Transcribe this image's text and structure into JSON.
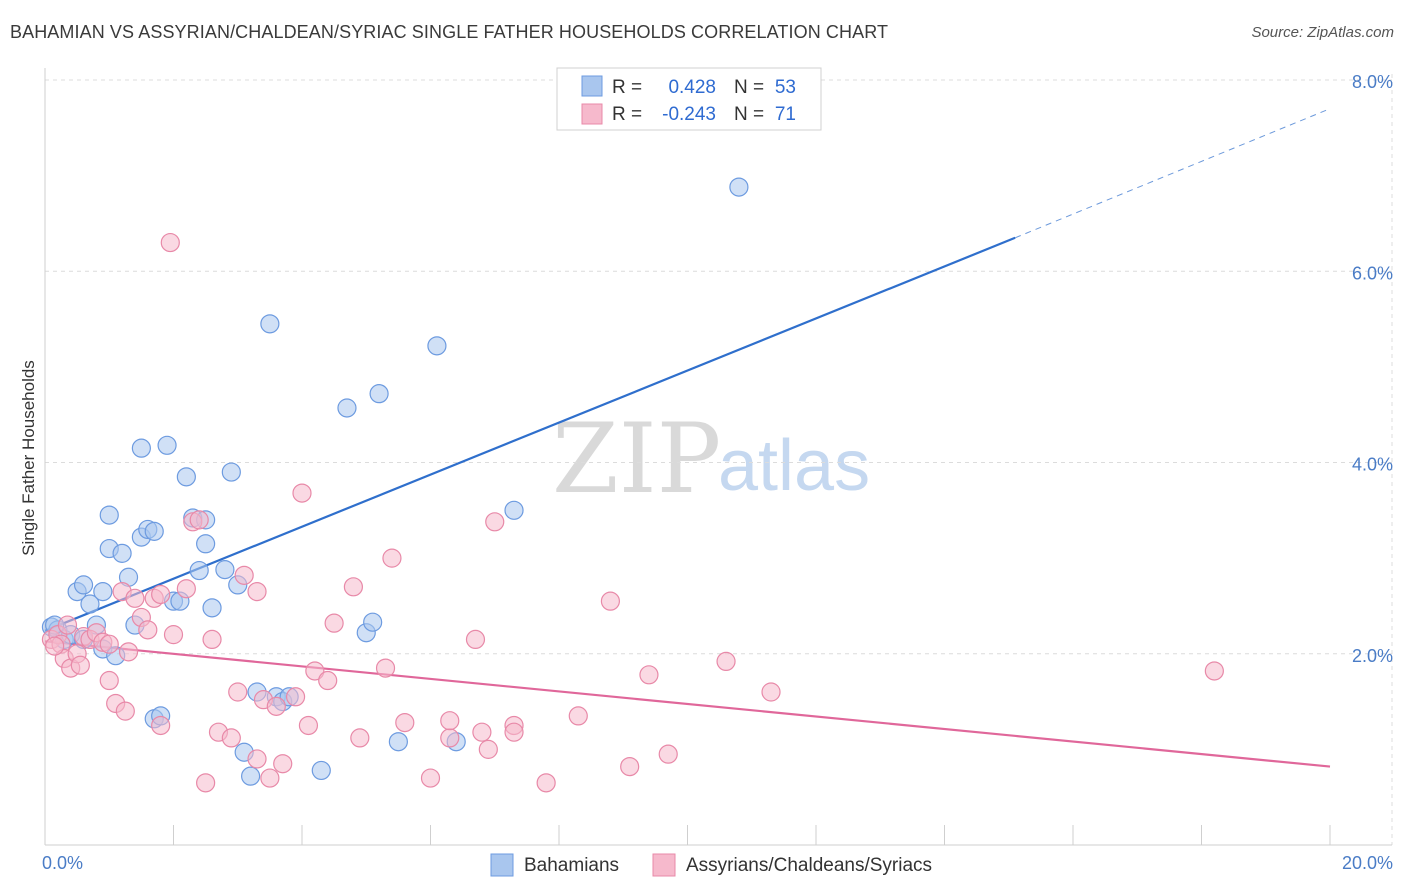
{
  "title": "BAHAMIAN VS ASSYRIAN/CHALDEAN/SYRIAC SINGLE FATHER HOUSEHOLDS CORRELATION CHART",
  "source": "Source: ZipAtlas.com",
  "watermark": {
    "zip": "ZIP",
    "atlas": "atlas"
  },
  "colors": {
    "blue_fill": "#a9c6ee",
    "blue_stroke": "#6d9be0",
    "blue_line": "#2f6fcc",
    "pink_fill": "#f6b9cc",
    "pink_stroke": "#e889a8",
    "pink_line": "#e0679a",
    "grid": "#dcdcdc",
    "axis_text": "#4a7cc6"
  },
  "legend_top": {
    "rows": [
      {
        "r_label": "R =",
        "r_value": "0.428",
        "n_label": "N =",
        "n_value": "53",
        "color": "blue"
      },
      {
        "r_label": "R =",
        "r_value": "-0.243",
        "n_label": "N =",
        "n_value": "71",
        "color": "pink"
      }
    ]
  },
  "legend_bottom": [
    {
      "label": "Bahamians",
      "color": "blue"
    },
    {
      "label": "Assyrians/Chaldeans/Syriacs",
      "color": "pink"
    }
  ],
  "chart_data": {
    "type": "scatter",
    "title": "BAHAMIAN VS ASSYRIAN/CHALDEAN/SYRIAC SINGLE FATHER HOUSEHOLDS CORRELATION CHART",
    "xlabel": "",
    "ylabel": "Single Father Households",
    "xlim": [
      0,
      20
    ],
    "ylim": [
      0,
      8
    ],
    "x_tick_labels": [
      "0.0%",
      "20.0%"
    ],
    "y_ticks": [
      2,
      4,
      6,
      8
    ],
    "y_tick_labels": [
      "2.0%",
      "4.0%",
      "6.0%",
      "8.0%"
    ],
    "grid": true,
    "legend_placement": "top-center",
    "series": [
      {
        "name": "Bahamians",
        "color": "blue",
        "trend": {
          "x0": 0,
          "y0": 2.24,
          "x1": 15.1,
          "y1": 6.35,
          "dashed_to_x": 20,
          "dashed_to_y": 7.7
        },
        "points": [
          [
            0.1,
            2.28
          ],
          [
            0.2,
            2.25
          ],
          [
            0.3,
            2.15
          ],
          [
            0.4,
            2.2
          ],
          [
            0.5,
            2.65
          ],
          [
            0.6,
            2.72
          ],
          [
            0.6,
            2.15
          ],
          [
            0.7,
            2.52
          ],
          [
            0.8,
            2.3
          ],
          [
            0.9,
            2.05
          ],
          [
            0.9,
            2.65
          ],
          [
            1.0,
            3.1
          ],
          [
            1.0,
            3.45
          ],
          [
            1.1,
            1.98
          ],
          [
            1.2,
            3.05
          ],
          [
            1.3,
            2.8
          ],
          [
            1.4,
            2.3
          ],
          [
            1.5,
            3.22
          ],
          [
            1.5,
            4.15
          ],
          [
            1.6,
            3.3
          ],
          [
            1.7,
            3.28
          ],
          [
            1.7,
            1.32
          ],
          [
            1.8,
            1.35
          ],
          [
            1.9,
            4.18
          ],
          [
            2.0,
            2.55
          ],
          [
            2.1,
            2.55
          ],
          [
            2.2,
            3.85
          ],
          [
            2.3,
            3.42
          ],
          [
            2.4,
            2.87
          ],
          [
            2.5,
            3.15
          ],
          [
            2.5,
            3.4
          ],
          [
            2.6,
            2.48
          ],
          [
            2.8,
            2.88
          ],
          [
            2.9,
            3.9
          ],
          [
            3.0,
            2.72
          ],
          [
            3.1,
            0.97
          ],
          [
            3.2,
            0.72
          ],
          [
            3.3,
            1.6
          ],
          [
            3.5,
            5.45
          ],
          [
            3.6,
            1.55
          ],
          [
            3.7,
            1.5
          ],
          [
            3.8,
            1.55
          ],
          [
            4.3,
            0.78
          ],
          [
            4.7,
            4.57
          ],
          [
            5.0,
            2.22
          ],
          [
            5.1,
            2.33
          ],
          [
            5.2,
            4.72
          ],
          [
            5.5,
            1.08
          ],
          [
            6.1,
            5.22
          ],
          [
            6.4,
            1.08
          ],
          [
            7.3,
            3.5
          ],
          [
            10.8,
            6.88
          ],
          [
            0.15,
            2.3
          ]
        ]
      },
      {
        "name": "Assyrians/Chaldeans/Syriacs",
        "color": "pink",
        "trend": {
          "x0": 0,
          "y0": 2.13,
          "x1": 20,
          "y1": 0.82
        },
        "points": [
          [
            0.1,
            2.15
          ],
          [
            0.2,
            2.2
          ],
          [
            0.25,
            2.1
          ],
          [
            0.3,
            1.95
          ],
          [
            0.35,
            2.3
          ],
          [
            0.4,
            1.85
          ],
          [
            0.5,
            2.0
          ],
          [
            0.55,
            1.88
          ],
          [
            0.6,
            2.18
          ],
          [
            0.7,
            2.15
          ],
          [
            0.8,
            2.22
          ],
          [
            0.9,
            2.12
          ],
          [
            1.0,
            1.72
          ],
          [
            1.0,
            2.1
          ],
          [
            1.1,
            1.48
          ],
          [
            1.2,
            2.65
          ],
          [
            1.25,
            1.4
          ],
          [
            1.3,
            2.02
          ],
          [
            1.4,
            2.58
          ],
          [
            1.5,
            2.38
          ],
          [
            1.6,
            2.25
          ],
          [
            1.7,
            2.58
          ],
          [
            1.8,
            1.25
          ],
          [
            1.8,
            2.62
          ],
          [
            1.95,
            6.3
          ],
          [
            2.0,
            2.2
          ],
          [
            2.2,
            2.68
          ],
          [
            2.3,
            3.38
          ],
          [
            2.4,
            3.4
          ],
          [
            2.5,
            0.65
          ],
          [
            2.6,
            2.15
          ],
          [
            2.7,
            1.18
          ],
          [
            2.9,
            1.12
          ],
          [
            3.0,
            1.6
          ],
          [
            3.1,
            2.82
          ],
          [
            3.3,
            2.65
          ],
          [
            3.3,
            0.9
          ],
          [
            3.4,
            1.52
          ],
          [
            3.5,
            0.7
          ],
          [
            3.6,
            1.45
          ],
          [
            3.7,
            0.85
          ],
          [
            3.9,
            1.55
          ],
          [
            4.0,
            3.68
          ],
          [
            4.1,
            1.25
          ],
          [
            4.2,
            1.82
          ],
          [
            4.4,
            1.72
          ],
          [
            4.5,
            2.32
          ],
          [
            4.8,
            2.7
          ],
          [
            4.9,
            1.12
          ],
          [
            5.3,
            1.85
          ],
          [
            5.4,
            3.0
          ],
          [
            5.6,
            1.28
          ],
          [
            6.0,
            0.7
          ],
          [
            6.3,
            1.12
          ],
          [
            6.3,
            1.3
          ],
          [
            6.7,
            2.15
          ],
          [
            6.8,
            1.18
          ],
          [
            6.9,
            1.0
          ],
          [
            7.0,
            3.38
          ],
          [
            7.3,
            1.25
          ],
          [
            7.3,
            1.18
          ],
          [
            7.8,
            0.65
          ],
          [
            8.3,
            1.35
          ],
          [
            8.8,
            2.55
          ],
          [
            9.1,
            0.82
          ],
          [
            9.4,
            1.78
          ],
          [
            9.7,
            0.95
          ],
          [
            10.6,
            1.92
          ],
          [
            11.3,
            1.6
          ],
          [
            18.2,
            1.82
          ],
          [
            0.15,
            2.08
          ]
        ]
      }
    ]
  }
}
